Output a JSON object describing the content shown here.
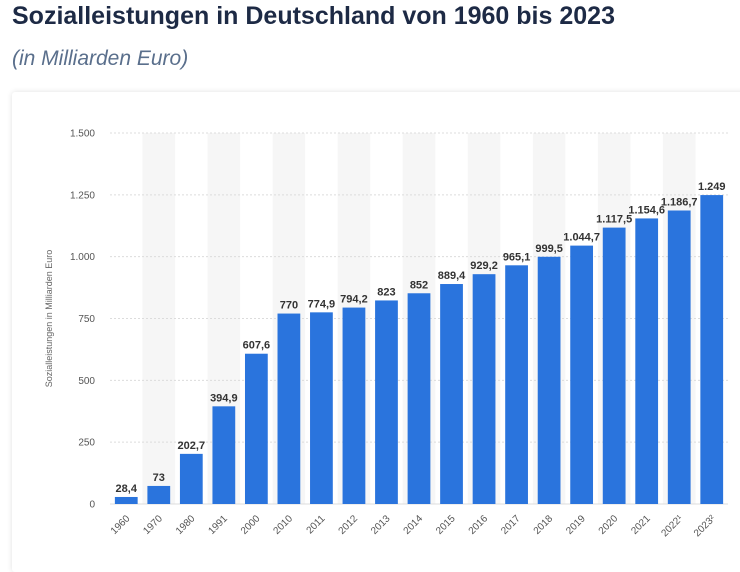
{
  "header": {
    "title": "Sozialleistungen in Deutschland von 1960 bis 2023",
    "subtitle": "(in Milliarden Euro)"
  },
  "colors": {
    "bar": "#2a74dd",
    "band": "#f6f6f6",
    "grid": "#dcdcdc"
  },
  "chart_data": {
    "type": "bar",
    "title": "Sozialleistungen in Deutschland von 1960 bis 2023",
    "subtitle": "(in Milliarden Euro)",
    "ylabel": "Sozialleistungen in Milliarden Euro",
    "xlabel": "",
    "ylim": [
      0,
      1500
    ],
    "yticks": [
      0,
      250,
      500,
      750,
      1000,
      1250,
      1500
    ],
    "ytick_labels": [
      "0",
      "250",
      "500",
      "750",
      "1.000",
      "1.250",
      "1.500"
    ],
    "grid": true,
    "legend": "none",
    "categories": [
      "1960",
      "1970",
      "1980",
      "1991",
      "2000",
      "2010",
      "2011",
      "2012",
      "2013",
      "2014",
      "2015",
      "2016",
      "2017",
      "2018",
      "2019",
      "2020",
      "2021",
      "2022¹",
      "2023²"
    ],
    "values": [
      28.4,
      73,
      202.7,
      394.9,
      607.6,
      770,
      774.9,
      794.2,
      823,
      852,
      889.4,
      929.2,
      965.1,
      999.5,
      1044.7,
      1117.5,
      1154.6,
      1186.7,
      1249
    ],
    "value_labels": [
      "28,4",
      "73",
      "202,7",
      "394,9",
      "607,6",
      "770",
      "774,9",
      "794,2",
      "823",
      "852",
      "889,4",
      "929,2",
      "965,1",
      "999,5",
      "1.044,7",
      "1.117,5",
      "1.154,6",
      "1.186,7",
      "1.249"
    ]
  }
}
